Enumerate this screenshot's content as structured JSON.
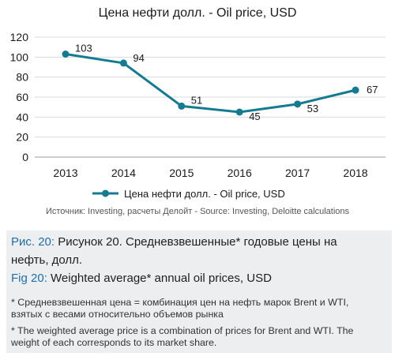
{
  "chart_data": {
    "type": "line",
    "title": "Цена нефти долл. - Oil price, USD",
    "categories": [
      "2013",
      "2014",
      "2015",
      "2016",
      "2017",
      "2018"
    ],
    "series": [
      {
        "name": "Цена нефти долл. - Oil price, USD",
        "values": [
          103,
          94,
          51,
          45,
          53,
          67
        ],
        "color": "#157b90"
      }
    ],
    "ylim": [
      0,
      120
    ],
    "yticks": [
      "0",
      "20",
      "40",
      "60",
      "80",
      "100",
      "120"
    ],
    "grid": true,
    "legend_position": "bottom"
  },
  "source": "Источник: Investing, расчеты Делойт - Source: Investing, Deloitte calculations",
  "caption": {
    "ru_prefix": "Рис. 20:",
    "ru_text_1": " Рисунок 20. Средневзвешенные* годовые цены на",
    "ru_text_2": "нефть, долл.",
    "en_prefix": "Fig 20:",
    "en_text": " Weighted average* annual oil prices, USD",
    "note_ru_1": "* Средневзвешенная цена = комбинация цен на нефть марок Brent и WTI,",
    "note_ru_2": "взятых с весами относительно объемов рынка",
    "note_en_1": "* The weighted average price is a combination of prices for Brent and WTI. The",
    "note_en_2": "weight of each corresponds to its market share."
  },
  "colors": {
    "line": "#157b90",
    "caption_prefix": "#1f6fa8",
    "caption_bg": "#edeef0",
    "grid": "#d9d9d9"
  }
}
